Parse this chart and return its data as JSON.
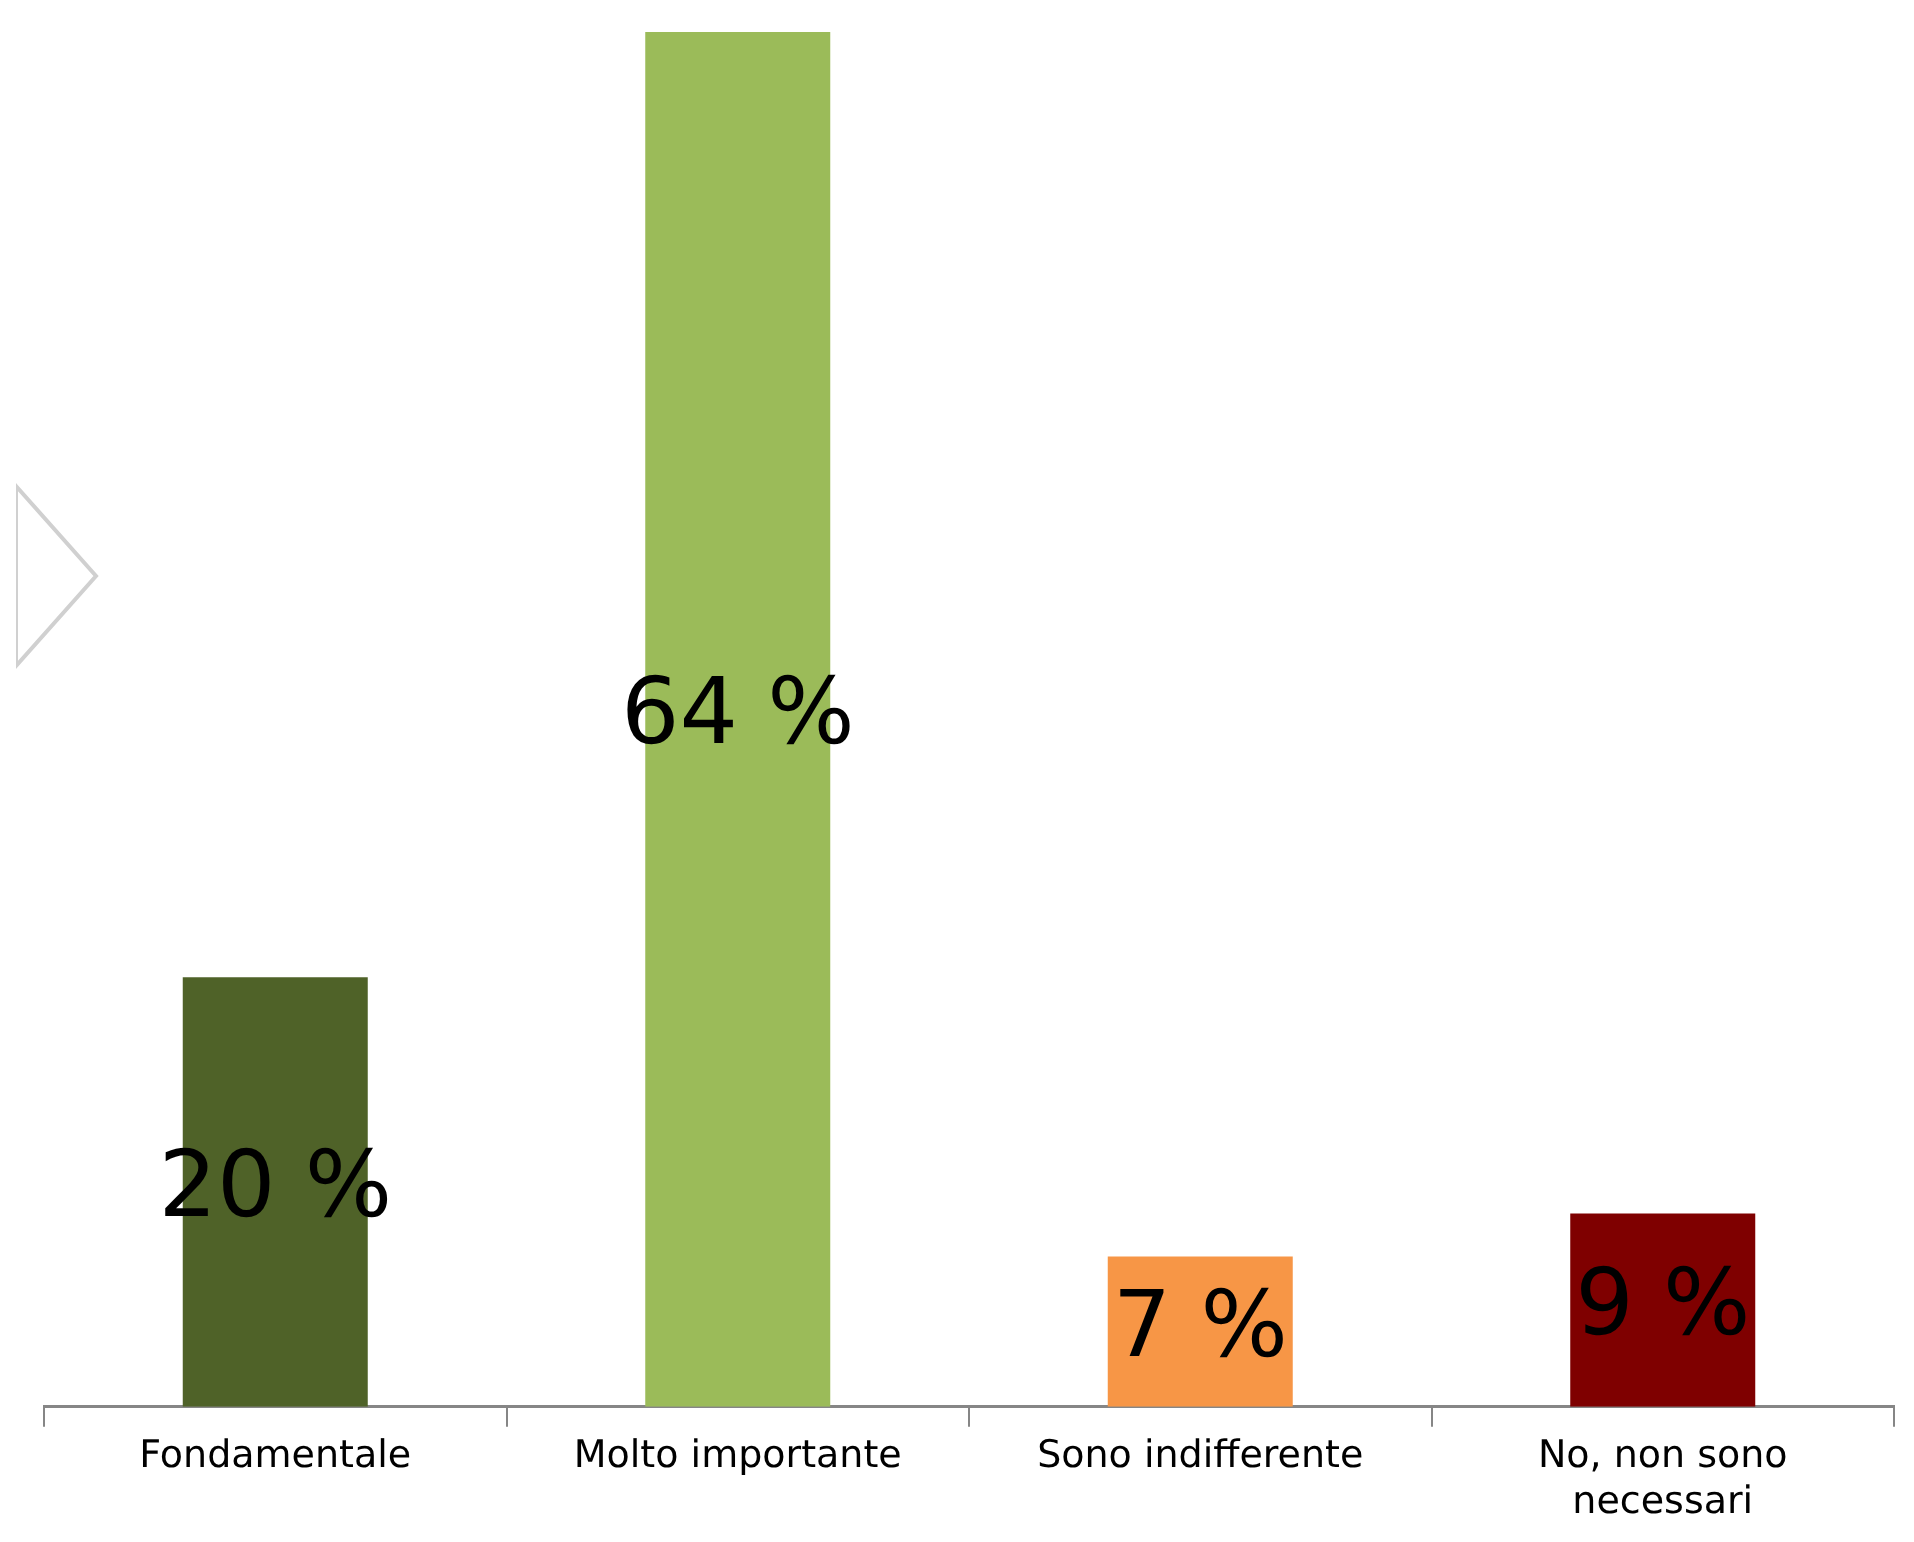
{
  "chart_data": {
    "type": "bar",
    "categories": [
      "Fondamentale",
      "Molto importante",
      "Sono indifferente",
      "No, non sono necessari"
    ],
    "values": [
      20,
      64,
      7,
      9
    ],
    "colors": [
      "#4f6228",
      "#9bbb59",
      "#f79646",
      "#7f0000"
    ],
    "value_labels": [
      "20 %",
      "64 %",
      "7 %",
      "9 %"
    ],
    "grid": false,
    "legend": false
  }
}
